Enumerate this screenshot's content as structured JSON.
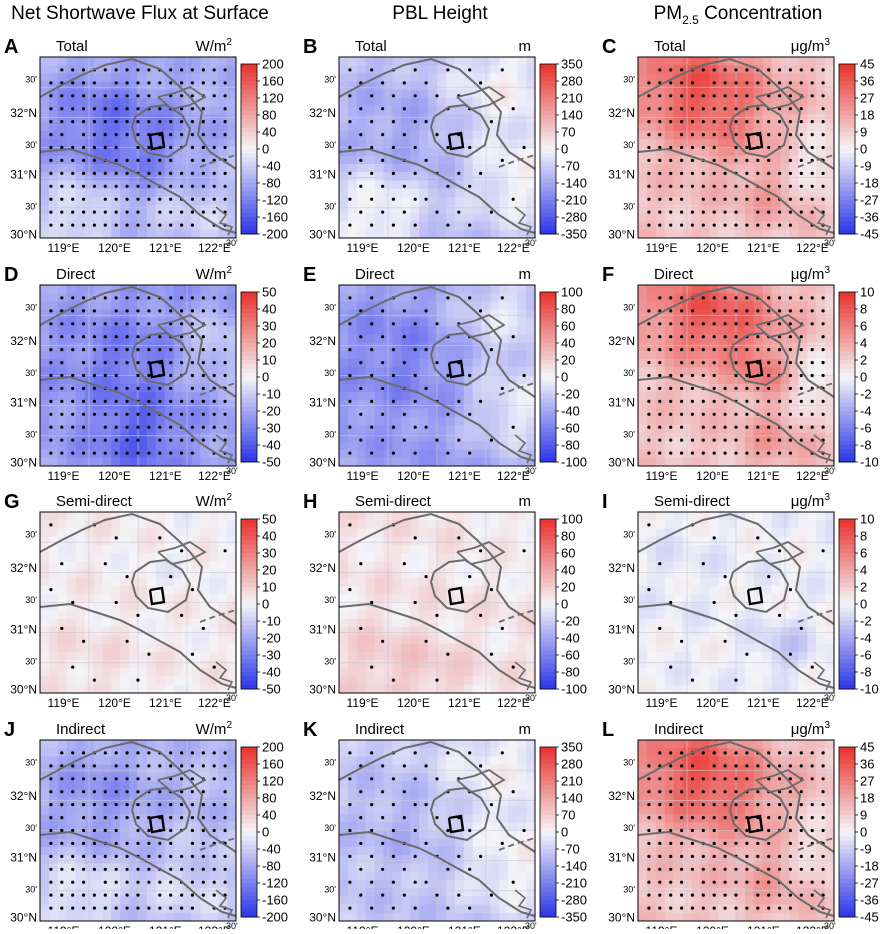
{
  "column_titles": [
    "Net Shortwave Flux at Surface",
    "PBL Height",
    "PM",
    "2.5",
    " Concentration"
  ],
  "axes": {
    "lon_labels": [
      "119°E",
      "120°E",
      "121°E",
      "122°E"
    ],
    "lat_labels": [
      "30'",
      "32°N",
      "30'",
      "31°N",
      "30'",
      "30°N"
    ],
    "lon_overflow_mark": "30'"
  },
  "colors": {
    "negative": "#2b35e8",
    "neutral": "#f4f4f8",
    "positive": "#e8302b",
    "coast": "#6b6b6b",
    "box": "#000000"
  },
  "chart_data": [
    {
      "type": "heatmap",
      "letter": "A",
      "title": "Total",
      "variable": "Net Shortwave Flux at Surface",
      "unit": "W/m",
      "unit_sup": "2",
      "colorbar_ticks": [
        "200",
        "160",
        "120",
        "80",
        "40",
        "0",
        "-40",
        "-80",
        "-120",
        "-160",
        "-200"
      ],
      "range": [
        -200,
        200
      ],
      "field": {
        "base": -0.35,
        "blobs": [
          [
            0.3,
            0.35,
            0.3,
            -0.25
          ],
          [
            0.55,
            0.55,
            0.3,
            -0.2
          ],
          [
            0.2,
            0.85,
            0.2,
            0.3
          ],
          [
            0.75,
            0.85,
            0.25,
            0.2
          ]
        ]
      },
      "dots": "dense"
    },
    {
      "type": "heatmap",
      "letter": "B",
      "title": "Total",
      "variable": "PBL Height",
      "unit": "m",
      "unit_sup": "",
      "colorbar_ticks": [
        "350",
        "280",
        "210",
        "140",
        "70",
        "0",
        "-70",
        "-140",
        "-210",
        "-280",
        "-350"
      ],
      "range": [
        -350,
        350
      ],
      "field": {
        "base": -0.3,
        "blobs": [
          [
            0.85,
            0.15,
            0.35,
            0.3
          ],
          [
            0.35,
            0.45,
            0.3,
            -0.15
          ],
          [
            0.9,
            0.7,
            0.25,
            0.28
          ],
          [
            0.2,
            0.85,
            0.25,
            0.35
          ]
        ]
      },
      "dots": "partial"
    },
    {
      "type": "heatmap",
      "letter": "C",
      "title": "Total",
      "variable": "PM2.5 Concentration",
      "unit": "μg/m",
      "unit_sup": "3",
      "colorbar_ticks": [
        "45",
        "36",
        "27",
        "18",
        "9",
        "0",
        "-9",
        "-18",
        "-27",
        "-36",
        "-45"
      ],
      "range": [
        -45,
        45
      ],
      "field": {
        "base": 0.25,
        "blobs": [
          [
            0.25,
            0.15,
            0.3,
            0.45
          ],
          [
            0.5,
            0.3,
            0.3,
            0.25
          ],
          [
            0.7,
            0.75,
            0.18,
            0.2
          ],
          [
            0.9,
            0.6,
            0.2,
            -0.25
          ]
        ]
      },
      "dots": "dense"
    },
    {
      "type": "heatmap",
      "letter": "D",
      "title": "Direct",
      "variable": "Net Shortwave Flux at Surface",
      "unit": "W/m",
      "unit_sup": "2",
      "colorbar_ticks": [
        "50",
        "40",
        "30",
        "20",
        "10",
        "0",
        "-10",
        "-20",
        "-30",
        "-40",
        "-50"
      ],
      "range": [
        -50,
        50
      ],
      "field": {
        "base": -0.45,
        "blobs": [
          [
            0.45,
            0.45,
            0.3,
            -0.2
          ],
          [
            0.5,
            0.85,
            0.2,
            -0.3
          ],
          [
            0.9,
            0.35,
            0.2,
            0.25
          ]
        ]
      },
      "dots": "dense"
    },
    {
      "type": "heatmap",
      "letter": "E",
      "title": "Direct",
      "variable": "PBL Height",
      "unit": "m",
      "unit_sup": "",
      "colorbar_ticks": [
        "100",
        "80",
        "60",
        "40",
        "20",
        "0",
        "-20",
        "-40",
        "-60",
        "-80",
        "-100"
      ],
      "range": [
        -100,
        100
      ],
      "field": {
        "base": -0.45,
        "blobs": [
          [
            0.85,
            0.15,
            0.3,
            0.35
          ],
          [
            0.9,
            0.7,
            0.25,
            0.38
          ],
          [
            0.35,
            0.4,
            0.3,
            -0.15
          ]
        ]
      },
      "dots": "partial"
    },
    {
      "type": "heatmap",
      "letter": "F",
      "title": "Direct",
      "variable": "PM2.5 Concentration",
      "unit": "μg/m",
      "unit_sup": "3",
      "colorbar_ticks": [
        "10",
        "8",
        "6",
        "4",
        "2",
        "0",
        "-2",
        "-4",
        "-6",
        "-8",
        "-10"
      ],
      "range": [
        -10,
        10
      ],
      "field": {
        "base": 0.25,
        "blobs": [
          [
            0.3,
            0.12,
            0.3,
            0.45
          ],
          [
            0.55,
            0.25,
            0.25,
            0.25
          ],
          [
            0.65,
            0.5,
            0.12,
            0.3
          ],
          [
            0.7,
            0.85,
            0.18,
            0.2
          ],
          [
            0.95,
            0.55,
            0.2,
            -0.25
          ]
        ]
      },
      "dots": "dense"
    },
    {
      "type": "heatmap",
      "letter": "G",
      "title": "Semi-direct",
      "variable": "Net Shortwave Flux at Surface",
      "unit": "W/m",
      "unit_sup": "2",
      "colorbar_ticks": [
        "50",
        "40",
        "30",
        "20",
        "10",
        "0",
        "-10",
        "-20",
        "-30",
        "-40",
        "-50"
      ],
      "range": [
        -50,
        50
      ],
      "field": {
        "base": 0.04,
        "blobs": [
          [
            0.25,
            0.85,
            0.25,
            0.08
          ],
          [
            0.7,
            0.25,
            0.2,
            -0.05
          ]
        ]
      },
      "dots": "sparse"
    },
    {
      "type": "heatmap",
      "letter": "H",
      "title": "Semi-direct",
      "variable": "PBL Height",
      "unit": "m",
      "unit_sup": "",
      "colorbar_ticks": [
        "100",
        "80",
        "60",
        "40",
        "20",
        "0",
        "-20",
        "-40",
        "-60",
        "-80",
        "-100"
      ],
      "range": [
        -100,
        100
      ],
      "field": {
        "base": 0.08,
        "blobs": [
          [
            0.2,
            0.85,
            0.25,
            0.12
          ],
          [
            0.5,
            0.9,
            0.2,
            0.1
          ],
          [
            0.85,
            0.2,
            0.2,
            -0.05
          ]
        ]
      },
      "dots": "sparse"
    },
    {
      "type": "heatmap",
      "letter": "I",
      "title": "Semi-direct",
      "variable": "PM2.5 Concentration",
      "unit": "μg/m",
      "unit_sup": "3",
      "colorbar_ticks": [
        "10",
        "8",
        "6",
        "4",
        "2",
        "0",
        "-2",
        "-4",
        "-6",
        "-8",
        "-10"
      ],
      "range": [
        -10,
        10
      ],
      "field": {
        "base": -0.02,
        "blobs": [
          [
            0.75,
            0.75,
            0.15,
            -0.2
          ],
          [
            0.2,
            0.3,
            0.25,
            -0.05
          ]
        ]
      },
      "dots": "sparse"
    },
    {
      "type": "heatmap",
      "letter": "J",
      "title": "Indirect",
      "variable": "Net Shortwave Flux at Surface",
      "unit": "W/m",
      "unit_sup": "2",
      "colorbar_ticks": [
        "200",
        "160",
        "120",
        "80",
        "40",
        "0",
        "-40",
        "-80",
        "-120",
        "-160",
        "-200"
      ],
      "range": [
        -200,
        200
      ],
      "field": {
        "base": -0.3,
        "blobs": [
          [
            0.3,
            0.3,
            0.3,
            -0.2
          ],
          [
            0.2,
            0.85,
            0.2,
            0.25
          ],
          [
            0.75,
            0.85,
            0.25,
            0.15
          ]
        ]
      },
      "dots": "dense"
    },
    {
      "type": "heatmap",
      "letter": "K",
      "title": "Indirect",
      "variable": "PBL Height",
      "unit": "m",
      "unit_sup": "",
      "colorbar_ticks": [
        "350",
        "280",
        "210",
        "140",
        "70",
        "0",
        "-70",
        "-140",
        "-210",
        "-280",
        "-350"
      ],
      "range": [
        -350,
        350
      ],
      "field": {
        "base": -0.25,
        "blobs": [
          [
            0.85,
            0.15,
            0.35,
            0.25
          ],
          [
            0.9,
            0.7,
            0.25,
            0.25
          ],
          [
            0.35,
            0.45,
            0.25,
            -0.1
          ]
        ]
      },
      "dots": "partial"
    },
    {
      "type": "heatmap",
      "letter": "L",
      "title": "Indirect",
      "variable": "PM2.5 Concentration",
      "unit": "μg/m",
      "unit_sup": "3",
      "colorbar_ticks": [
        "45",
        "36",
        "27",
        "18",
        "9",
        "0",
        "-9",
        "-18",
        "-27",
        "-36",
        "-45"
      ],
      "range": [
        -45,
        45
      ],
      "field": {
        "base": 0.25,
        "blobs": [
          [
            0.25,
            0.15,
            0.3,
            0.45
          ],
          [
            0.5,
            0.3,
            0.3,
            0.25
          ],
          [
            0.7,
            0.75,
            0.18,
            0.2
          ],
          [
            0.9,
            0.6,
            0.2,
            -0.2
          ]
        ]
      },
      "dots": "dense"
    }
  ]
}
